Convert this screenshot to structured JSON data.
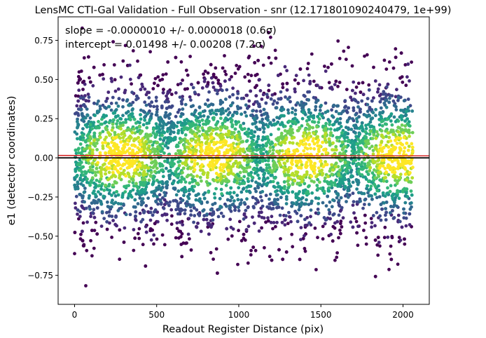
{
  "chart_data": {
    "type": "scatter",
    "title": "LensMC CTI-Gal Validation - Full Observation - snr (12.171801090240479, 1e+99)",
    "xlabel": "Readout Register Distance (pix)",
    "ylabel": "e1 (detector coordinates)",
    "xlim": [
      -100,
      2160
    ],
    "ylim": [
      -0.935,
      0.9
    ],
    "x_ticks": [
      0,
      500,
      1000,
      1500,
      2000
    ],
    "x_tick_labels": [
      "0",
      "500",
      "1000",
      "1500",
      "2000"
    ],
    "y_ticks": [
      -0.75,
      -0.5,
      -0.25,
      0.0,
      0.25,
      0.5,
      0.75
    ],
    "y_tick_labels": [
      "−0.75",
      "−0.50",
      "−0.25",
      "0.00",
      "0.25",
      "0.50",
      "0.75"
    ],
    "grid": false,
    "colormap": "viridis (point density)",
    "points": {
      "x_range": [
        0,
        2060
      ],
      "y_center": 0.015,
      "y_spread_sd": 0.25,
      "y_extent": [
        -0.85,
        0.85
      ]
    },
    "lines": [
      {
        "kind": "fit",
        "slope": -1e-06,
        "intercept": 0.01498,
        "color": "#d62728"
      },
      {
        "kind": "reference",
        "y": 0.0,
        "color": "#000000"
      }
    ],
    "annotations": [
      "slope = -0.0000010 +/- 0.0000018 (0.6σ)",
      "intercept = 0.01498 +/- 0.00208 (7.2σ)"
    ]
  }
}
